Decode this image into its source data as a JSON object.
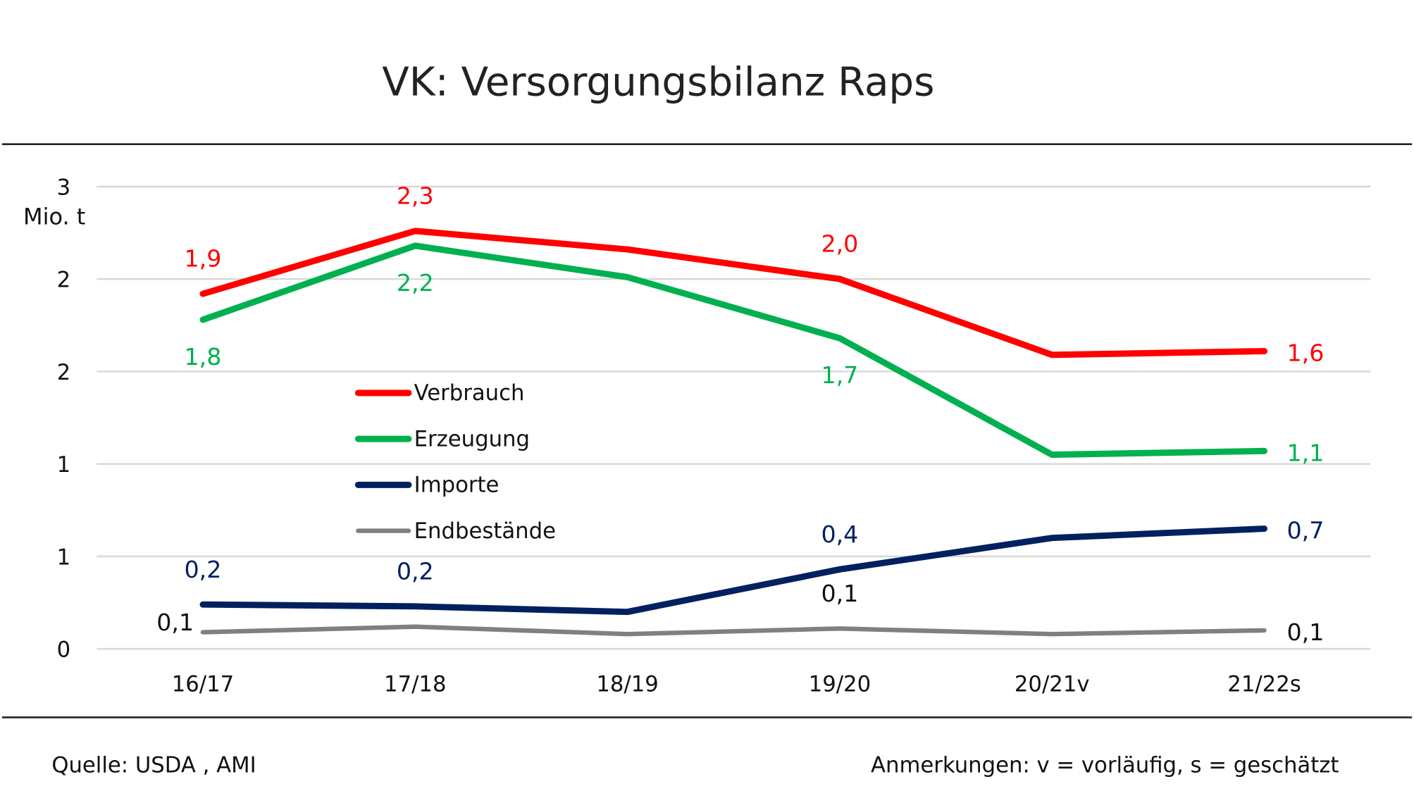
{
  "chart_data": {
    "type": "line",
    "title": "VK:  Versorgungsbilanz Raps",
    "ylabel": "Mio. t",
    "xlabel": "",
    "ylim": [
      0,
      2.5
    ],
    "grid": true,
    "y_ticks": [
      {
        "value": 0,
        "label": "0"
      },
      {
        "value": 0.5,
        "label": "1"
      },
      {
        "value": 1.0,
        "label": "1"
      },
      {
        "value": 1.5,
        "label": "2"
      },
      {
        "value": 2.0,
        "label": "2"
      },
      {
        "value": 2.5,
        "label": "3"
      }
    ],
    "categories": [
      "16/17",
      "17/18",
      "18/19",
      "19/20",
      "20/21v",
      "21/22s"
    ],
    "legend_placement": "center-left",
    "series": [
      {
        "name": "Verbrauch",
        "color": "#ff0000",
        "values": [
          1.92,
          2.26,
          2.16,
          2.0,
          1.59,
          1.61
        ],
        "labels": [
          "1,9",
          "2,3",
          null,
          "2,0",
          null,
          "1,6"
        ],
        "label_pos": [
          "above",
          "above",
          null,
          "above",
          null,
          "right"
        ]
      },
      {
        "name": "Erzeugung",
        "color": "#00b050",
        "values": [
          1.78,
          2.18,
          2.01,
          1.68,
          1.05,
          1.07
        ],
        "labels": [
          "1,8",
          "2,2",
          null,
          "1,7",
          null,
          "1,1"
        ],
        "label_pos": [
          "below",
          "below",
          null,
          "below",
          null,
          "right"
        ]
      },
      {
        "name": "Importe",
        "color": "#002060",
        "values": [
          0.24,
          0.23,
          0.2,
          0.43,
          0.6,
          0.65
        ],
        "labels": [
          "0,2",
          "0,2",
          null,
          "0,4",
          null,
          "0,7"
        ],
        "label_pos": [
          "above",
          "above",
          null,
          "above",
          null,
          "right"
        ]
      },
      {
        "name": "Endbestände",
        "color": "#808080",
        "values": [
          0.09,
          0.12,
          0.08,
          0.11,
          0.08,
          0.1
        ],
        "labels": [
          "0,1",
          null,
          null,
          "0,1",
          null,
          "0,1"
        ],
        "label_pos": [
          "left",
          null,
          null,
          "above",
          null,
          "right"
        ]
      }
    ]
  },
  "footer": {
    "source": "Quelle: USDA  , AMI",
    "notes": "Anmerkungen: v = vorläufig, s = geschätzt"
  }
}
